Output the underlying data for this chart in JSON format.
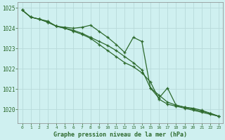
{
  "background_color": "#cff0f0",
  "grid_color": "#b8dada",
  "line_color": "#2d6a2d",
  "x_ticks": [
    0,
    1,
    2,
    3,
    4,
    5,
    6,
    7,
    8,
    9,
    10,
    11,
    12,
    13,
    14,
    15,
    16,
    17,
    18,
    19,
    20,
    21,
    22,
    23
  ],
  "xlabel": "Graphe pression niveau de la mer (hPa)",
  "ylim": [
    1019.3,
    1025.3
  ],
  "yticks": [
    1020,
    1021,
    1022,
    1023,
    1024,
    1025
  ],
  "series1": [
    1024.9,
    1024.55,
    1024.45,
    1024.35,
    1024.1,
    1024.05,
    1024.0,
    1024.05,
    1024.15,
    1023.85,
    1023.55,
    1023.2,
    1022.8,
    1023.55,
    1023.35,
    1021.05,
    1020.55,
    1021.05,
    1020.2,
    1020.1,
    1020.05,
    1019.95,
    1019.8,
    1019.65
  ],
  "series2": [
    1024.9,
    1024.55,
    1024.45,
    1024.3,
    1024.1,
    1024.0,
    1023.9,
    1023.75,
    1023.55,
    1023.35,
    1023.15,
    1022.9,
    1022.6,
    1022.3,
    1021.95,
    1021.05,
    1020.7,
    1020.35,
    1020.2,
    1020.1,
    1020.0,
    1019.9,
    1019.8,
    1019.65
  ],
  "series3": [
    1024.9,
    1024.55,
    1024.45,
    1024.3,
    1024.1,
    1024.0,
    1023.85,
    1023.7,
    1023.5,
    1023.2,
    1022.9,
    1022.6,
    1022.3,
    1022.1,
    1021.8,
    1021.35,
    1020.5,
    1020.25,
    1020.15,
    1020.05,
    1019.95,
    1019.85,
    1019.75,
    1019.65
  ]
}
